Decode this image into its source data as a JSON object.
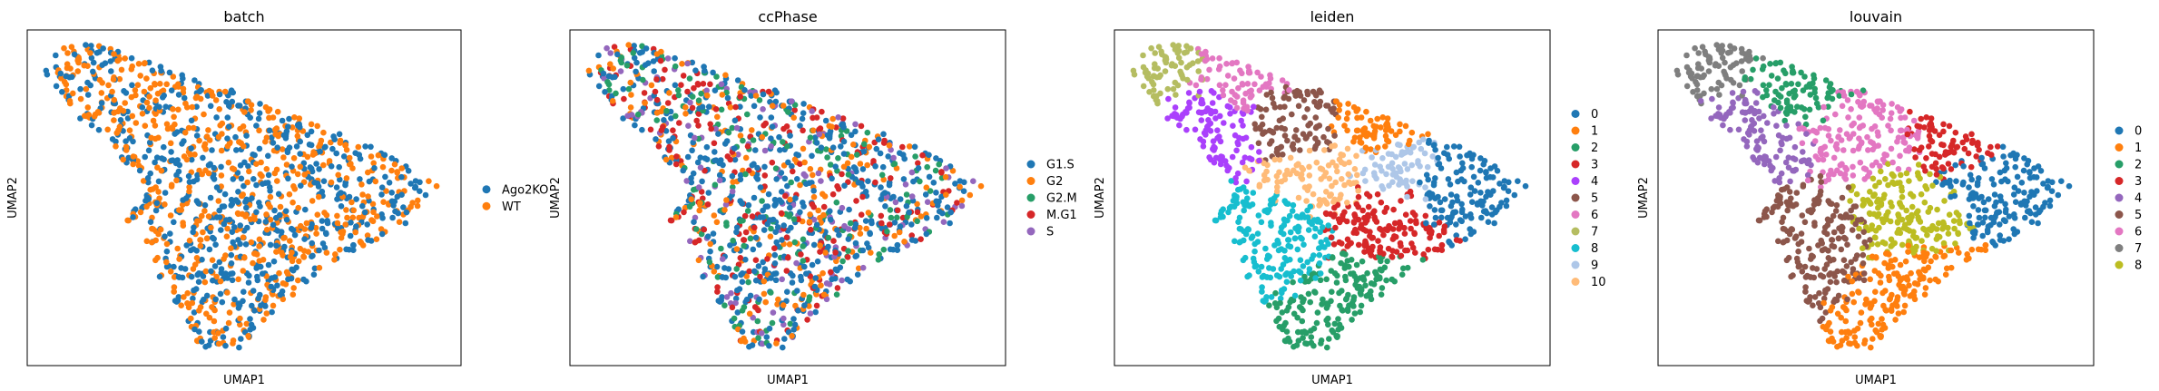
{
  "chart_data": [
    {
      "type": "scatter",
      "title": "batch",
      "xlabel": "UMAP1",
      "ylabel": "UMAP2",
      "grid": false,
      "legend_position": "right",
      "series": [
        {
          "name": "Ago2KO",
          "color": "#1f77b4"
        },
        {
          "name": "WT",
          "color": "#ff7f0e"
        }
      ]
    },
    {
      "type": "scatter",
      "title": "ccPhase",
      "xlabel": "UMAP1",
      "ylabel": "UMAP2",
      "grid": false,
      "legend_position": "right",
      "series": [
        {
          "name": "G1.S",
          "color": "#1f77b4"
        },
        {
          "name": "G2",
          "color": "#ff7f0e"
        },
        {
          "name": "G2.M",
          "color": "#279e68"
        },
        {
          "name": "M.G1",
          "color": "#d62728"
        },
        {
          "name": "S",
          "color": "#9467bd"
        }
      ]
    },
    {
      "type": "scatter",
      "title": "leiden",
      "xlabel": "UMAP1",
      "ylabel": "UMAP2",
      "grid": false,
      "legend_position": "right",
      "series": [
        {
          "name": "0",
          "color": "#1f77b4"
        },
        {
          "name": "1",
          "color": "#ff7f0e"
        },
        {
          "name": "2",
          "color": "#279e68"
        },
        {
          "name": "3",
          "color": "#d62728"
        },
        {
          "name": "4",
          "color": "#aa40fc"
        },
        {
          "name": "5",
          "color": "#8c564b"
        },
        {
          "name": "6",
          "color": "#e377c2"
        },
        {
          "name": "7",
          "color": "#b5bd61"
        },
        {
          "name": "8",
          "color": "#17becf"
        },
        {
          "name": "9",
          "color": "#aec7e8"
        },
        {
          "name": "10",
          "color": "#ffbb78"
        }
      ]
    },
    {
      "type": "scatter",
      "title": "louvain",
      "xlabel": "UMAP1",
      "ylabel": "UMAP2",
      "grid": false,
      "legend_position": "right",
      "series": [
        {
          "name": "0",
          "color": "#1f77b4"
        },
        {
          "name": "1",
          "color": "#ff7f0e"
        },
        {
          "name": "2",
          "color": "#279e68"
        },
        {
          "name": "3",
          "color": "#d62728"
        },
        {
          "name": "4",
          "color": "#9467bd"
        },
        {
          "name": "5",
          "color": "#8c564b"
        },
        {
          "name": "6",
          "color": "#e377c2"
        },
        {
          "name": "7",
          "color": "#7f7f7f"
        },
        {
          "name": "8",
          "color": "#bcbd22"
        }
      ]
    }
  ]
}
